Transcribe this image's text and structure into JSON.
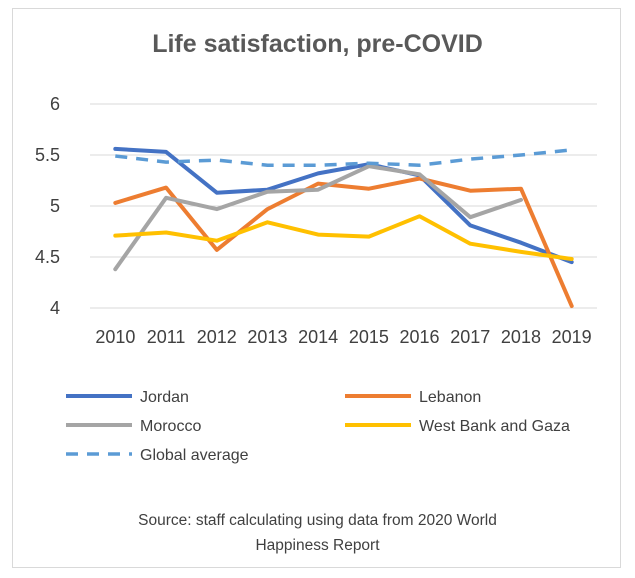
{
  "chart_data": {
    "type": "line",
    "title": "Life satisfaction, pre-COVID",
    "categories": [
      "2010",
      "2011",
      "2012",
      "2013",
      "2014",
      "2015",
      "2016",
      "2017",
      "2018",
      "2019"
    ],
    "y_ticks": [
      "6",
      "5.5",
      "5",
      "4.5",
      "4"
    ],
    "ylim": [
      4,
      6
    ],
    "grid": true,
    "legend_position": "bottom",
    "series": [
      {
        "name": "Jordan",
        "color": "#4472c4",
        "dashed": false,
        "values": [
          5.56,
          5.53,
          5.13,
          5.16,
          5.32,
          5.41,
          5.3,
          4.81,
          4.64,
          4.45
        ]
      },
      {
        "name": "Lebanon",
        "color": "#ed7d31",
        "dashed": false,
        "values": [
          5.03,
          5.18,
          4.57,
          4.97,
          5.22,
          5.17,
          5.27,
          5.15,
          5.17,
          4.02
        ]
      },
      {
        "name": "Morocco",
        "color": "#a5a5a5",
        "dashed": false,
        "values": [
          4.38,
          5.08,
          4.97,
          5.14,
          5.16,
          5.39,
          5.31,
          4.89,
          5.06,
          null
        ]
      },
      {
        "name": "West Bank and Gaza",
        "color": "#ffc000",
        "dashed": false,
        "values": [
          4.71,
          4.74,
          4.66,
          4.84,
          4.72,
          4.7,
          4.9,
          4.63,
          4.55,
          4.48
        ]
      },
      {
        "name": "Global average",
        "color": "#5b9bd5",
        "dashed": true,
        "values": [
          5.49,
          5.43,
          5.45,
          5.4,
          5.4,
          5.42,
          5.4,
          5.46,
          5.5,
          5.55
        ]
      }
    ]
  },
  "source_line1": "Source: staff calculating using data from 2020 World",
  "source_line2": "Happiness Report"
}
